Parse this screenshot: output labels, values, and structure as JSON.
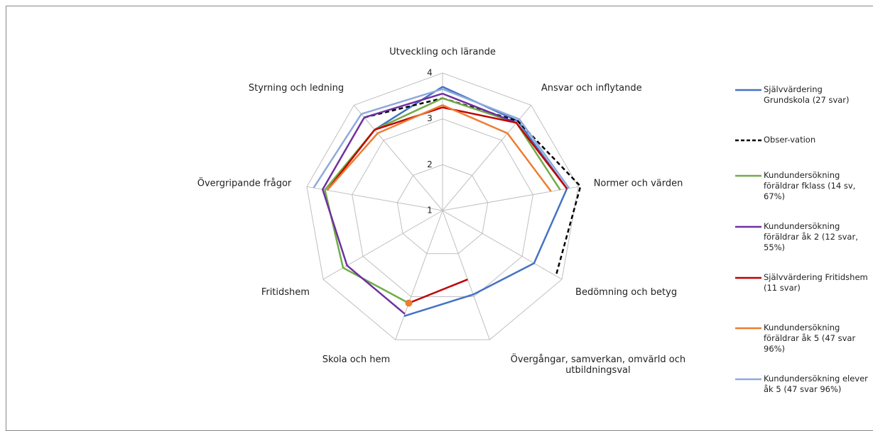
{
  "chart_data": {
    "type": "radar",
    "categories": [
      "Utveckling och lärande",
      "Ansvar och inflytande",
      "Normer och värden",
      "Bedömning och betyg",
      "Övergångar, samverkan, omvärld och utbildningsval",
      "Skola och hem",
      "Fritidshem",
      "Övergripande frågor",
      "Styrning och ledning"
    ],
    "rlim": [
      1,
      4
    ],
    "rticks": [
      1,
      2,
      3,
      4
    ],
    "grid": true,
    "legend": "right",
    "series": [
      {
        "name": "Självvärdering Grundskola (27 svar)",
        "color": "#4472c4",
        "dash": false,
        "values": [
          3.7,
          3.55,
          3.75,
          3.3,
          2.95,
          3.45,
          null,
          null,
          3.3
        ]
      },
      {
        "name": "Obser-vation",
        "color": "#000000",
        "dash": true,
        "values": [
          3.45,
          3.55,
          4.05,
          3.85,
          null,
          null,
          null,
          null,
          3.65
        ]
      },
      {
        "name": "Kundundersökning föräldrar fklass (14 sv, 67%)",
        "color": "#70ad47",
        "dash": false,
        "values": [
          3.45,
          3.5,
          3.6,
          null,
          null,
          3.15,
          3.5,
          3.6,
          3.3
        ]
      },
      {
        "name": "Kundundersökning föräldrar åk 2 (12 svar, 55%)",
        "color": "#7030a0",
        "dash": false,
        "values": [
          3.55,
          3.5,
          null,
          null,
          null,
          3.4,
          3.4,
          3.65,
          3.65
        ]
      },
      {
        "name": "Självvärdering Fritidshem (11 svar)",
        "color": "#c00000",
        "dash": false,
        "values": [
          3.25,
          3.5,
          3.75,
          null,
          2.6,
          3.15,
          null,
          3.55,
          3.3
        ]
      },
      {
        "name": "Kundundersökning föräldrar åk 5 (47 svar 96%)",
        "color": "#ed7d31",
        "dash": false,
        "values": [
          3.3,
          3.2,
          3.4,
          null,
          null,
          3.15,
          null,
          3.55,
          3.2
        ]
      },
      {
        "name": "Kundundersökning elever åk 5 (47 svar 96%)",
        "color": "#8eaadb",
        "dash": false,
        "values": [
          3.65,
          3.6,
          3.8,
          null,
          null,
          null,
          null,
          3.85,
          3.75
        ]
      }
    ]
  }
}
